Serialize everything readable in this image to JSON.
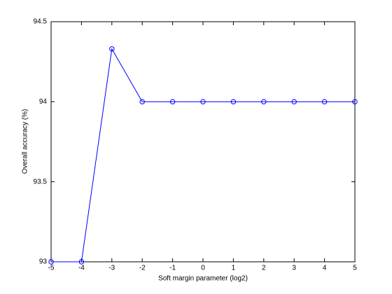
{
  "chart_data": {
    "type": "line",
    "xlabel": "Soft margin parameter (log2)",
    "ylabel": "Overall accuracy (%)",
    "x": [
      -5,
      -4,
      -3,
      -2,
      -1,
      0,
      1,
      2,
      3,
      4,
      5
    ],
    "series": [
      {
        "color": "#0000ff",
        "marker": "circle",
        "values": [
          93,
          93,
          94.33,
          94,
          94,
          94,
          94,
          94,
          94,
          94,
          94
        ]
      }
    ],
    "xlim": [
      -5,
      5
    ],
    "xticks": [
      -5,
      -4,
      -3,
      -2,
      -1,
      0,
      1,
      2,
      3,
      4,
      5
    ],
    "ylim": [
      93,
      94.5
    ],
    "yticks": [
      93,
      93.5,
      94,
      94.5
    ],
    "grid": false
  }
}
